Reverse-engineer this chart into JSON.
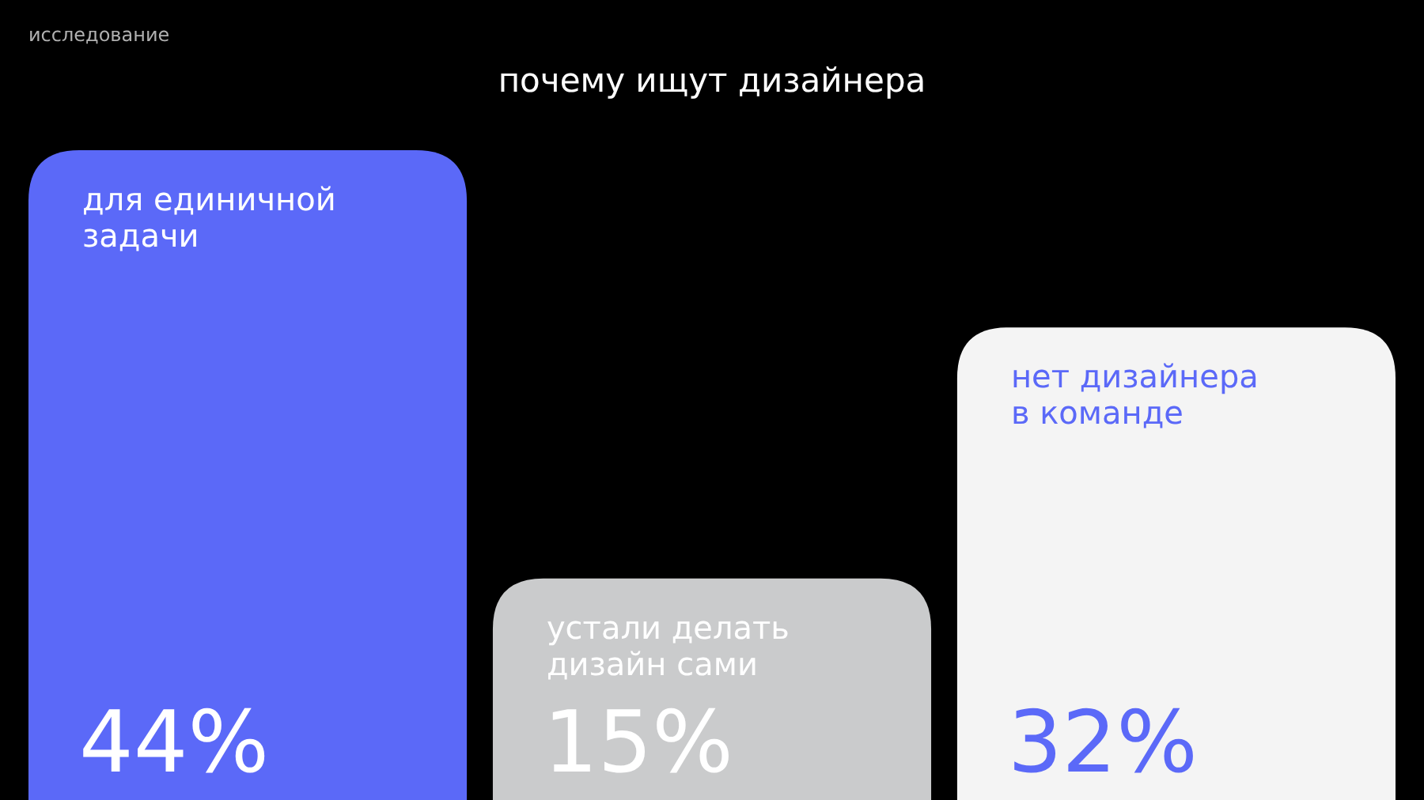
{
  "chart_data": {
    "type": "bar",
    "title": "почему ищут дизайнера",
    "annotations": [
      "исследование"
    ],
    "categories": [
      "для единичной задачи",
      "устали делать дизайн сами",
      "нет дизайнера в команде"
    ],
    "values": [
      44,
      15,
      32
    ],
    "colors": [
      "#5b69f8",
      "#cacbcc",
      "#f4f4f4"
    ],
    "value_labels": [
      "44%",
      "15%",
      "32%"
    ],
    "ylim": [
      0,
      44
    ]
  }
}
